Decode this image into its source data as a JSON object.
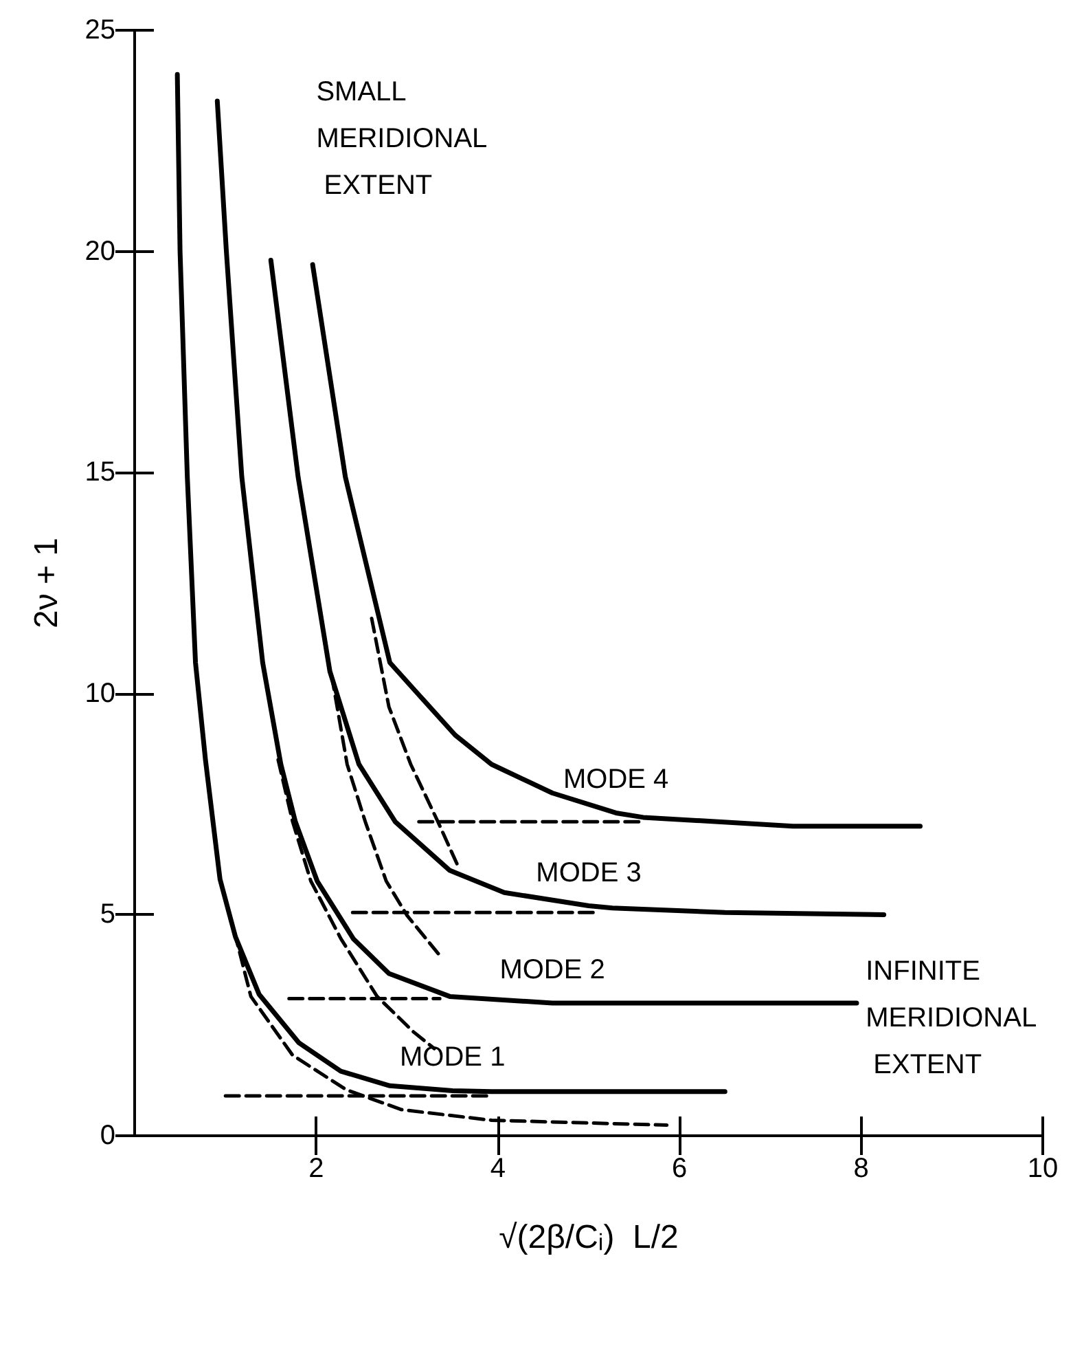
{
  "chart_data": {
    "type": "line",
    "xlabel": "√(2β/Cᵢ)  L/2",
    "ylabel": "2ν + 1",
    "xlim": [
      0,
      10
    ],
    "xticks": [
      2,
      4,
      6,
      8,
      10
    ],
    "ylim": [
      0,
      25
    ],
    "yticks": [
      0,
      5,
      10,
      15,
      20,
      25
    ],
    "grid": false,
    "legend": false,
    "marker": "none",
    "annotations": [
      "SMALL MERIDIONAL EXTENT",
      "INFINITE MERIDIONAL EXTENT"
    ],
    "series": [
      {
        "name": "MODE 1",
        "color": "#000000",
        "line_style": "solid",
        "x": [
          0.47,
          0.5,
          0.58,
          0.67,
          0.78,
          0.94,
          1.11,
          1.37,
          1.81,
          2.27,
          2.81,
          3.5,
          3.93,
          5.0,
          6.5
        ],
        "values": [
          24.0,
          20.0,
          14.9,
          10.7,
          8.5,
          5.8,
          4.5,
          3.2,
          2.1,
          1.46,
          1.13,
          1.02,
          1.0,
          1.0,
          1.0
        ]
      },
      {
        "name": "MODE 2",
        "color": "#000000",
        "line_style": "solid",
        "x": [
          0.91,
          1.01,
          1.18,
          1.41,
          1.61,
          1.77,
          2.01,
          2.41,
          2.8,
          3.47,
          4.6,
          6.0,
          7.95
        ],
        "values": [
          23.4,
          20.0,
          14.9,
          10.7,
          8.4,
          7.1,
          5.76,
          4.45,
          3.67,
          3.15,
          3.0,
          3.0,
          3.0
        ]
      },
      {
        "name": "MODE 3",
        "color": "#000000",
        "line_style": "solid",
        "x": [
          1.5,
          1.8,
          2.15,
          2.47,
          2.87,
          3.47,
          4.07,
          5.0,
          5.26,
          6.5,
          8.25
        ],
        "values": [
          19.8,
          14.9,
          10.5,
          8.4,
          7.1,
          6.0,
          5.5,
          5.2,
          5.15,
          5.05,
          5.0
        ]
      },
      {
        "name": "MODE 4",
        "color": "#000000",
        "line_style": "solid",
        "x": [
          1.96,
          2.32,
          2.81,
          3.13,
          3.53,
          3.93,
          4.6,
          5.3,
          5.6,
          7.25,
          8.65
        ],
        "values": [
          19.7,
          14.9,
          10.7,
          9.97,
          9.06,
          8.4,
          7.75,
          7.3,
          7.2,
          7.0,
          7.0
        ]
      },
      {
        "color": "#000000",
        "line_style": "dashed",
        "x": [
          1.1,
          1.28,
          1.74,
          2.33,
          2.94,
          3.93,
          5.86
        ],
        "values": [
          4.6,
          3.15,
          1.82,
          1.04,
          0.59,
          0.35,
          0.24
        ]
      },
      {
        "color": "#000000",
        "line_style": "dashed",
        "x": [
          1.58,
          1.74,
          1.94,
          2.27,
          2.67,
          3.07,
          3.3
        ],
        "values": [
          8.5,
          7.1,
          5.76,
          4.46,
          3.15,
          2.35,
          1.97
        ]
      },
      {
        "color": "#000000",
        "line_style": "dashed",
        "x": [
          2.17,
          2.34,
          2.54,
          2.77,
          3.0,
          3.35
        ],
        "values": [
          10.4,
          8.4,
          7.1,
          5.76,
          4.98,
          4.1
        ]
      },
      {
        "color": "#000000",
        "line_style": "dashed",
        "x": [
          2.61,
          2.8,
          3.04,
          3.34,
          3.56
        ],
        "values": [
          11.7,
          9.7,
          8.4,
          7.1,
          6.1
        ]
      },
      {
        "color": "#000000",
        "line_style": "dashed",
        "x": [
          1.0,
          3.95
        ],
        "values": [
          0.9,
          0.9
        ]
      },
      {
        "color": "#000000",
        "line_style": "dashed",
        "x": [
          1.7,
          3.36
        ],
        "values": [
          3.1,
          3.1
        ]
      },
      {
        "color": "#000000",
        "line_style": "dashed",
        "x": [
          2.4,
          5.1
        ],
        "values": [
          5.05,
          5.05
        ]
      },
      {
        "color": "#000000",
        "line_style": "dashed",
        "x": [
          3.13,
          5.6
        ],
        "values": [
          7.1,
          7.1
        ]
      }
    ]
  }
}
